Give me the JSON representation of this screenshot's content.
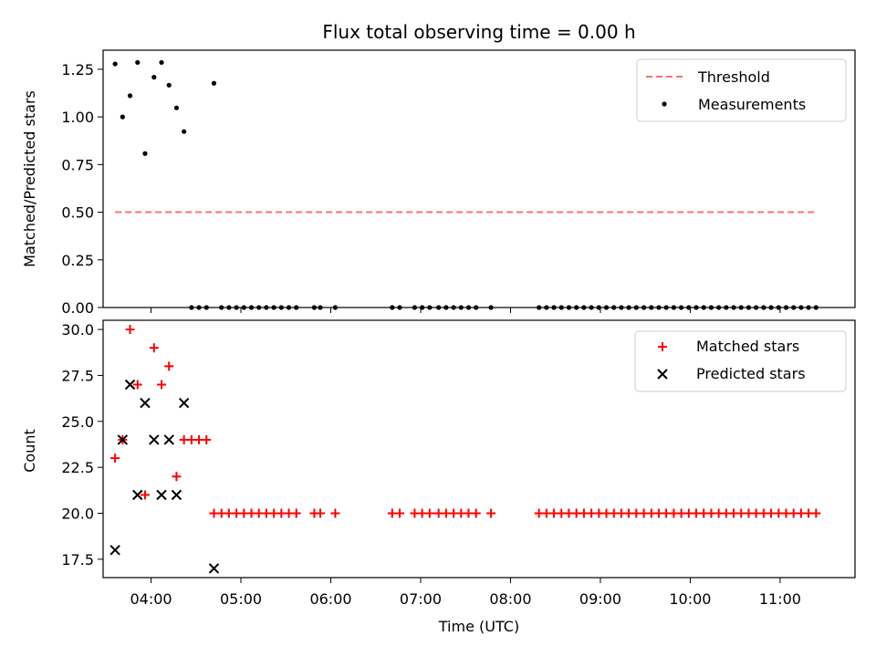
{
  "chart_data": [
    {
      "type": "scatter",
      "title": "Flux total observing time = 0.00 h",
      "xlabel": "",
      "ylabel": "Matched/Predicted stars",
      "xlim": [
        "03:28",
        "11:50"
      ],
      "ylim": [
        0,
        1.35
      ],
      "yticks": [
        0.0,
        0.25,
        0.5,
        0.75,
        1.0,
        1.25
      ],
      "ytick_labels": [
        "0.00",
        "0.25",
        "0.50",
        "0.75",
        "1.00",
        "1.25"
      ],
      "legend_position": "top-right",
      "threshold": {
        "name": "Threshold",
        "color": "#ff7070",
        "style": "dashed",
        "x": [
          "03:36",
          "11:24"
        ],
        "y": 0.5
      },
      "series": [
        {
          "name": "Measurements",
          "marker": "point",
          "color": "#000000",
          "points": [
            [
              "03:36",
              1.2778
            ],
            [
              "03:41",
              1.0
            ],
            [
              "03:46",
              1.1111
            ],
            [
              "03:51",
              1.2857
            ],
            [
              "03:56",
              0.8077
            ],
            [
              "04:02",
              1.2083
            ],
            [
              "04:07",
              1.2857
            ],
            [
              "04:12",
              1.1667
            ],
            [
              "04:17",
              1.0476
            ],
            [
              "04:22",
              0.9231
            ],
            [
              "04:42",
              1.1765
            ],
            [
              "04:27",
              0
            ],
            [
              "04:32",
              0
            ],
            [
              "04:37",
              0
            ],
            [
              "04:47",
              0
            ],
            [
              "04:52",
              0
            ],
            [
              "04:57",
              0
            ],
            [
              "05:02",
              0
            ],
            [
              "05:07",
              0
            ],
            [
              "05:12",
              0
            ],
            [
              "05:17",
              0
            ],
            [
              "05:22",
              0
            ],
            [
              "05:27",
              0
            ],
            [
              "05:32",
              0
            ],
            [
              "05:37",
              0
            ],
            [
              "05:49",
              0
            ],
            [
              "05:53",
              0
            ],
            [
              "06:03",
              0
            ],
            [
              "06:41",
              0
            ],
            [
              "06:46",
              0
            ],
            [
              "06:56",
              0
            ],
            [
              "07:01",
              0
            ],
            [
              "07:06",
              0
            ],
            [
              "07:12",
              0
            ],
            [
              "07:17",
              0
            ],
            [
              "07:22",
              0
            ],
            [
              "07:27",
              0
            ],
            [
              "07:32",
              0
            ],
            [
              "07:37",
              0
            ],
            [
              "07:47",
              0
            ],
            [
              "08:19",
              0
            ],
            [
              "08:24",
              0
            ],
            [
              "08:29",
              0
            ],
            [
              "08:34",
              0
            ],
            [
              "08:39",
              0
            ],
            [
              "08:44",
              0
            ],
            [
              "08:49",
              0
            ],
            [
              "08:54",
              0
            ],
            [
              "08:59",
              0
            ],
            [
              "09:04",
              0
            ],
            [
              "09:09",
              0
            ],
            [
              "09:14",
              0
            ],
            [
              "09:19",
              0
            ],
            [
              "09:24",
              0
            ],
            [
              "09:29",
              0
            ],
            [
              "09:34",
              0
            ],
            [
              "09:39",
              0
            ],
            [
              "09:44",
              0
            ],
            [
              "09:49",
              0
            ],
            [
              "09:54",
              0
            ],
            [
              "09:59",
              0
            ],
            [
              "10:04",
              0
            ],
            [
              "10:09",
              0
            ],
            [
              "10:14",
              0
            ],
            [
              "10:19",
              0
            ],
            [
              "10:24",
              0
            ],
            [
              "10:29",
              0
            ],
            [
              "10:34",
              0
            ],
            [
              "10:39",
              0
            ],
            [
              "10:44",
              0
            ],
            [
              "10:49",
              0
            ],
            [
              "10:54",
              0
            ],
            [
              "10:59",
              0
            ],
            [
              "11:04",
              0
            ],
            [
              "11:09",
              0
            ],
            [
              "11:14",
              0
            ],
            [
              "11:19",
              0
            ],
            [
              "11:24",
              0
            ]
          ]
        }
      ]
    },
    {
      "type": "scatter",
      "title": "",
      "xlabel": "Time (UTC)",
      "ylabel": "Count",
      "xlim": [
        "03:28",
        "11:50"
      ],
      "ylim": [
        16.5,
        30.5
      ],
      "yticks": [
        17.5,
        20.0,
        22.5,
        25.0,
        27.5,
        30.0
      ],
      "ytick_labels": [
        "17.5",
        "20.0",
        "22.5",
        "25.0",
        "27.5",
        "30.0"
      ],
      "xticks": [
        "04:00",
        "05:00",
        "06:00",
        "07:00",
        "08:00",
        "09:00",
        "10:00",
        "11:00"
      ],
      "xtick_labels": [
        "04:00",
        "05:00",
        "06:00",
        "07:00",
        "08:00",
        "09:00",
        "10:00",
        "11:00"
      ],
      "legend_position": "top-right",
      "series": [
        {
          "name": "Matched stars",
          "marker": "plus",
          "color": "#ff0000",
          "points": [
            [
              "03:36",
              23
            ],
            [
              "03:41",
              24
            ],
            [
              "03:46",
              30
            ],
            [
              "03:51",
              27
            ],
            [
              "03:56",
              21
            ],
            [
              "04:02",
              29
            ],
            [
              "04:07",
              27
            ],
            [
              "04:12",
              28
            ],
            [
              "04:17",
              22
            ],
            [
              "04:22",
              24
            ],
            [
              "04:27",
              24
            ],
            [
              "04:32",
              24
            ],
            [
              "04:37",
              24
            ],
            [
              "04:42",
              20
            ],
            [
              "04:47",
              20
            ],
            [
              "04:52",
              20
            ],
            [
              "04:57",
              20
            ],
            [
              "05:02",
              20
            ],
            [
              "05:07",
              20
            ],
            [
              "05:12",
              20
            ],
            [
              "05:17",
              20
            ],
            [
              "05:22",
              20
            ],
            [
              "05:27",
              20
            ],
            [
              "05:32",
              20
            ],
            [
              "05:37",
              20
            ],
            [
              "05:49",
              20
            ],
            [
              "05:53",
              20
            ],
            [
              "06:03",
              20
            ],
            [
              "06:41",
              20
            ],
            [
              "06:46",
              20
            ],
            [
              "06:56",
              20
            ],
            [
              "07:01",
              20
            ],
            [
              "07:06",
              20
            ],
            [
              "07:12",
              20
            ],
            [
              "07:17",
              20
            ],
            [
              "07:22",
              20
            ],
            [
              "07:27",
              20
            ],
            [
              "07:32",
              20
            ],
            [
              "07:37",
              20
            ],
            [
              "07:47",
              20
            ],
            [
              "08:19",
              20
            ],
            [
              "08:24",
              20
            ],
            [
              "08:29",
              20
            ],
            [
              "08:34",
              20
            ],
            [
              "08:39",
              20
            ],
            [
              "08:44",
              20
            ],
            [
              "08:49",
              20
            ],
            [
              "08:54",
              20
            ],
            [
              "08:59",
              20
            ],
            [
              "09:04",
              20
            ],
            [
              "09:09",
              20
            ],
            [
              "09:14",
              20
            ],
            [
              "09:19",
              20
            ],
            [
              "09:24",
              20
            ],
            [
              "09:29",
              20
            ],
            [
              "09:34",
              20
            ],
            [
              "09:39",
              20
            ],
            [
              "09:44",
              20
            ],
            [
              "09:49",
              20
            ],
            [
              "09:54",
              20
            ],
            [
              "09:59",
              20
            ],
            [
              "10:04",
              20
            ],
            [
              "10:09",
              20
            ],
            [
              "10:14",
              20
            ],
            [
              "10:19",
              20
            ],
            [
              "10:24",
              20
            ],
            [
              "10:29",
              20
            ],
            [
              "10:34",
              20
            ],
            [
              "10:39",
              20
            ],
            [
              "10:44",
              20
            ],
            [
              "10:49",
              20
            ],
            [
              "10:54",
              20
            ],
            [
              "10:59",
              20
            ],
            [
              "11:04",
              20
            ],
            [
              "11:09",
              20
            ],
            [
              "11:14",
              20
            ],
            [
              "11:19",
              20
            ],
            [
              "11:24",
              20
            ]
          ]
        },
        {
          "name": "Predicted stars",
          "marker": "x",
          "color": "#000000",
          "points": [
            [
              "03:36",
              18
            ],
            [
              "03:41",
              24
            ],
            [
              "03:46",
              27
            ],
            [
              "03:51",
              21
            ],
            [
              "03:56",
              26
            ],
            [
              "04:02",
              24
            ],
            [
              "04:07",
              21
            ],
            [
              "04:12",
              24
            ],
            [
              "04:17",
              21
            ],
            [
              "04:22",
              26
            ],
            [
              "04:42",
              17
            ]
          ]
        }
      ]
    }
  ]
}
